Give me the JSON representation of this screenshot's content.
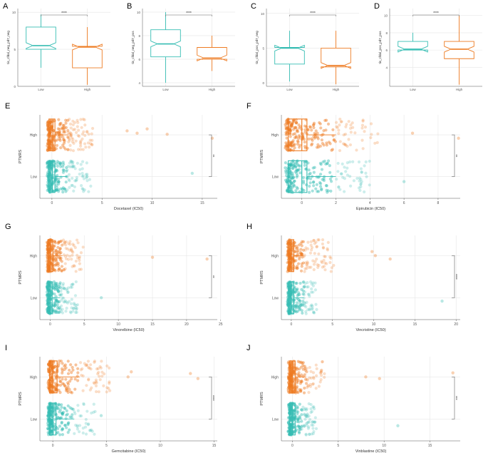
{
  "figure": {
    "colors": {
      "low": "#36bdb3",
      "high": "#ee7b22",
      "grid": "#e6e6e6",
      "axis": "#555555",
      "bracket": "#666666"
    }
  },
  "chart_data": [
    {
      "panel": "A",
      "type": "box",
      "ylabel": "tis_cfdal_neg_pd7_neg",
      "categories": [
        "Low",
        "High"
      ],
      "ylim": [
        0,
        10.5
      ],
      "yticks": [
        0,
        5,
        10
      ],
      "boxes": [
        {
          "name": "Low",
          "min": 2.5,
          "q1": 5.0,
          "median": 5.5,
          "q3": 8.0,
          "max": 9.7
        },
        {
          "name": "High",
          "min": 0.2,
          "q1": 2.5,
          "median": 5.3,
          "q3": 5.4,
          "max": 8.0
        }
      ],
      "significance": "****"
    },
    {
      "panel": "B",
      "type": "box",
      "ylabel": "tis_cfdal_neg_pd7_pos",
      "categories": [
        "Low",
        "High"
      ],
      "ylim": [
        3.7,
        10.3
      ],
      "yticks": [
        4,
        6,
        8,
        10
      ],
      "boxes": [
        {
          "name": "Low",
          "min": 4.0,
          "q1": 6.2,
          "median": 7.3,
          "q3": 8.5,
          "max": 10.0
        },
        {
          "name": "High",
          "min": 5.0,
          "q1": 6.0,
          "median": 6.1,
          "q3": 7.0,
          "max": 8.0
        }
      ],
      "significance": "****"
    },
    {
      "panel": "C",
      "type": "box",
      "ylabel": "tis_cfdal_pos_pd7_neg",
      "categories": [
        "Low",
        "High"
      ],
      "ylim": [
        -0.5,
        10.7
      ],
      "yticks": [
        0,
        5,
        10
      ],
      "boxes": [
        {
          "name": "Low",
          "min": 0.2,
          "q1": 2.7,
          "median": 5.0,
          "q3": 5.1,
          "max": 7.5
        },
        {
          "name": "High",
          "min": -0.2,
          "q1": 2.3,
          "median": 2.5,
          "q3": 5.0,
          "max": 7.5
        }
      ],
      "significance": "****"
    },
    {
      "panel": "D",
      "type": "box",
      "ylabel": "tis_cfdal_pos_pd7_pos",
      "categories": [
        "Low",
        "High"
      ],
      "ylim": [
        1.8,
        10.8
      ],
      "yticks": [
        4,
        6,
        8,
        10
      ],
      "boxes": [
        {
          "name": "Low",
          "min": 6.0,
          "q1": 6.0,
          "median": 6.1,
          "q3": 7.0,
          "max": 8.0
        },
        {
          "name": "High",
          "min": 2.0,
          "q1": 5.0,
          "median": 6.1,
          "q3": 7.0,
          "max": 10.0
        }
      ],
      "significance": "****"
    },
    {
      "panel": "E",
      "type": "scatter",
      "xlabel": "Docetaxel (IC50)",
      "ylabel": "PTMRS",
      "categories": [
        "Low",
        "High"
      ],
      "xlim": [
        -1.2,
        16.5
      ],
      "xticks": [
        0,
        5,
        10,
        15
      ],
      "significance": "**",
      "high": {
        "median": 0.1,
        "q1": -0.3,
        "q3": 0.3,
        "whisker_max": 1.6,
        "spread_max": 4.0,
        "outliers": [
          [
            7.5,
            0.12
          ],
          [
            8.5,
            0.05
          ],
          [
            9.5,
            0.18
          ],
          [
            11.5,
            0.02
          ],
          [
            16.0,
            -0.1
          ]
        ]
      },
      "low": {
        "median": 0.05,
        "q1": -0.3,
        "q3": 0.3,
        "whisker_max": 1.5,
        "spread_max": 4.0,
        "outliers": [
          [
            3.5,
            0.0
          ],
          [
            14.0,
            0.1
          ]
        ]
      }
    },
    {
      "panel": "F",
      "type": "scatter",
      "xlabel": "Epirubicin (IC50)",
      "ylabel": "PTMRS",
      "categories": [
        "Low",
        "High"
      ],
      "xlim": [
        -1.2,
        9.3
      ],
      "xticks": [
        0,
        2,
        4,
        6,
        8
      ],
      "significance": "**",
      "high": {
        "median": 0.0,
        "q1": -0.8,
        "q3": 0.3,
        "whisker_max": 2.0,
        "spread_max": 4.5,
        "outliers": [
          [
            6.5,
            0.05
          ],
          [
            9.2,
            -0.1
          ]
        ]
      },
      "low": {
        "median": 0.0,
        "q1": -0.8,
        "q3": 0.3,
        "whisker_max": 2.0,
        "spread_max": 4.0,
        "outliers": [
          [
            6.0,
            -0.15
          ]
        ]
      }
    },
    {
      "panel": "G",
      "type": "scatter",
      "xlabel": "Vinorelbine (IC50)",
      "ylabel": "PTMRS",
      "categories": [
        "Low",
        "High"
      ],
      "xlim": [
        -1.5,
        24.5
      ],
      "xticks": [
        0,
        5,
        10,
        15,
        20,
        25
      ],
      "significance": "**",
      "high": {
        "median": 0.0,
        "q1": -0.3,
        "q3": 0.4,
        "whisker_max": 1.8,
        "spread_max": 5.0,
        "outliers": [
          [
            15.0,
            -0.05
          ],
          [
            23.0,
            -0.1
          ]
        ]
      },
      "low": {
        "median": 0.0,
        "q1": -0.3,
        "q3": 0.3,
        "whisker_max": 1.5,
        "spread_max": 4.0,
        "outliers": [
          [
            7.5,
            0.0
          ]
        ]
      }
    },
    {
      "panel": "H",
      "type": "scatter",
      "xlabel": "Vincristine (IC50)",
      "ylabel": "PTMRS",
      "categories": [
        "Low",
        "High"
      ],
      "xlim": [
        -1.2,
        20.5
      ],
      "xticks": [
        0,
        5,
        10,
        15,
        20
      ],
      "significance": "****",
      "high": {
        "median": 0.0,
        "q1": -0.3,
        "q3": 0.3,
        "whisker_max": 1.5,
        "spread_max": 5.0,
        "outliers": [
          [
            9.8,
            0.12
          ],
          [
            10.2,
            0.0
          ],
          [
            12.0,
            -0.1
          ]
        ]
      },
      "low": {
        "median": 0.0,
        "q1": -0.3,
        "q3": 0.3,
        "whisker_max": 1.5,
        "spread_max": 3.0,
        "outliers": [
          [
            18.3,
            -0.1
          ]
        ]
      }
    },
    {
      "panel": "I",
      "type": "scatter",
      "xlabel": "Gemcitabine (IC50)",
      "ylabel": "PTMRS",
      "categories": [
        "Low",
        "High"
      ],
      "xlim": [
        -1.2,
        15.3
      ],
      "xticks": [
        0,
        5,
        10,
        15
      ],
      "significance": "****",
      "high": {
        "median": 0.0,
        "q1": -0.3,
        "q3": 0.4,
        "whisker_max": 2.5,
        "spread_max": 5.5,
        "outliers": [
          [
            7.0,
            0.0
          ],
          [
            7.3,
            0.15
          ],
          [
            12.8,
            0.1
          ],
          [
            13.5,
            -0.05
          ]
        ]
      },
      "low": {
        "median": 0.0,
        "q1": -0.3,
        "q3": 0.3,
        "whisker_max": 2.0,
        "spread_max": 4.0,
        "outliers": [
          [
            4.5,
            0.1
          ]
        ]
      }
    },
    {
      "panel": "J",
      "type": "scatter",
      "xlabel": "Vinblastine (IC50)",
      "ylabel": "PTMRS",
      "categories": [
        "Low",
        "High"
      ],
      "xlim": [
        -1.2,
        18.3
      ],
      "xticks": [
        0,
        5,
        10,
        15
      ],
      "significance": "***",
      "high": {
        "median": 0.0,
        "q1": -0.3,
        "q3": 0.3,
        "whisker_max": 1.5,
        "spread_max": 3.5,
        "outliers": [
          [
            8.0,
            0.0
          ],
          [
            9.5,
            -0.05
          ],
          [
            17.5,
            0.12
          ]
        ]
      },
      "low": {
        "median": 0.0,
        "q1": -0.3,
        "q3": 0.3,
        "whisker_max": 1.0,
        "spread_max": 2.5,
        "outliers": [
          [
            11.5,
            -0.2
          ]
        ]
      }
    }
  ]
}
